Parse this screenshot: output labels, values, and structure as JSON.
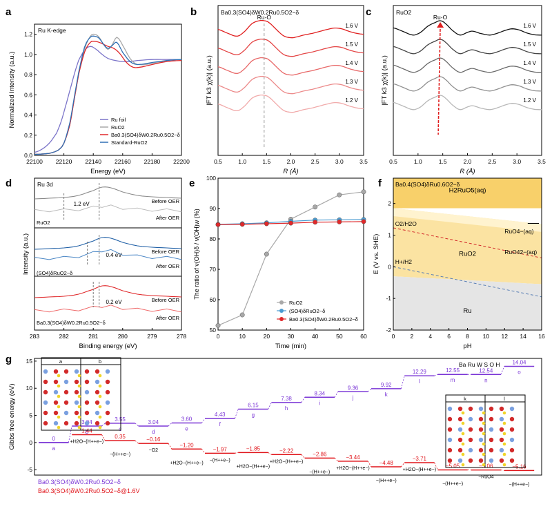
{
  "chart_data": [
    {
      "panel": "a",
      "type": "line",
      "title": "Ru K-edge",
      "xlabel": "Energy (eV)",
      "ylabel": "Normalized Intensity (a.u.)",
      "xlim": [
        22100,
        22200
      ],
      "ylim": [
        0,
        1.3
      ],
      "xticks": [
        22100,
        22120,
        22140,
        22160,
        22180,
        22200
      ],
      "yticks": [
        0.0,
        0.2,
        0.4,
        0.6,
        0.8,
        1.0,
        1.2
      ],
      "legend_position": "bottom-right",
      "series": [
        {
          "name": "Ru foil",
          "color": "#7b74c9",
          "x": [
            22100,
            22105,
            22110,
            22115,
            22118,
            22121,
            22124,
            22127,
            22130,
            22134,
            22138,
            22142,
            22146,
            22150,
            22155,
            22160,
            22165,
            22170,
            22180,
            22190,
            22200
          ],
          "y": [
            0.03,
            0.06,
            0.12,
            0.22,
            0.33,
            0.48,
            0.64,
            0.8,
            0.94,
            1.04,
            1.08,
            1.05,
            1.0,
            0.96,
            0.94,
            0.93,
            0.93,
            0.94,
            0.95,
            0.95,
            0.95
          ]
        },
        {
          "name": "RuO2",
          "color": "#a8a8a8",
          "x": [
            22100,
            22110,
            22116,
            22120,
            22124,
            22127,
            22130,
            22134,
            22138,
            22141,
            22144,
            22147,
            22150,
            22153,
            22156,
            22160,
            22165,
            22170,
            22180,
            22190,
            22200
          ],
          "y": [
            0.01,
            0.02,
            0.05,
            0.12,
            0.3,
            0.55,
            0.8,
            1.05,
            1.18,
            1.2,
            1.17,
            1.1,
            1.05,
            1.1,
            1.17,
            1.09,
            0.96,
            0.9,
            0.91,
            0.94,
            0.95
          ]
        },
        {
          "name": "Ba0.3(SO4)δW0.2Ru0.5O2−δ",
          "color": "#e0282a",
          "x": [
            22100,
            22110,
            22116,
            22120,
            22124,
            22127,
            22130,
            22134,
            22138,
            22141,
            22144,
            22147,
            22150,
            22154,
            22158,
            22162,
            22166,
            22170,
            22180,
            22190,
            22200
          ],
          "y": [
            0.01,
            0.02,
            0.05,
            0.12,
            0.3,
            0.55,
            0.8,
            1.02,
            1.12,
            1.13,
            1.12,
            1.1,
            1.08,
            1.06,
            1.01,
            0.93,
            0.88,
            0.87,
            0.9,
            0.93,
            0.94
          ]
        },
        {
          "name": "Standard-RuO2",
          "color": "#2f6fb4",
          "x": [
            22100,
            22110,
            22116,
            22120,
            22124,
            22127,
            22130,
            22134,
            22138,
            22141,
            22144,
            22147,
            22150,
            22153,
            22156,
            22160,
            22165,
            22170,
            22180,
            22190,
            22200
          ],
          "y": [
            0.01,
            0.02,
            0.05,
            0.12,
            0.32,
            0.57,
            0.82,
            1.07,
            1.17,
            1.18,
            1.16,
            1.1,
            1.06,
            1.09,
            1.12,
            1.02,
            0.93,
            0.9,
            0.92,
            0.94,
            0.95
          ]
        }
      ]
    },
    {
      "panel": "b",
      "type": "line",
      "title": "Ba0.3(SO4)δW0.2Ru0.5O2−δ",
      "xlabel": "R (Å)",
      "ylabel": "|FT k3 χ(k)| (a.u.)",
      "xlim": [
        0.5,
        3.5
      ],
      "xticks": [
        0.5,
        1.0,
        1.5,
        2.0,
        2.5,
        3.0,
        3.5
      ],
      "annotation": "Ru-O",
      "marker_x": 1.45,
      "series": [
        {
          "name": "1.6 V",
          "color": "#e02020"
        },
        {
          "name": "1.5 V",
          "color": "#e44646"
        },
        {
          "name": "1.4 V",
          "color": "#e86868"
        },
        {
          "name": "1.3 V",
          "color": "#ec8a8a"
        },
        {
          "name": "1.2 V",
          "color": "#f1aaaa"
        }
      ]
    },
    {
      "panel": "c",
      "type": "line",
      "title": "RuO2",
      "xlabel": "R (Å)",
      "ylabel": "|FT k3 χ(k)| (a.u.)",
      "xlim": [
        0.5,
        3.5
      ],
      "xticks": [
        0.5,
        1.0,
        1.5,
        2.0,
        2.5,
        3.0,
        3.5
      ],
      "annotation": "Ru-O",
      "marker_x": 1.45,
      "series": [
        {
          "name": "1.6 V",
          "color": "#111111"
        },
        {
          "name": "1.5 V",
          "color": "#444444"
        },
        {
          "name": "1.4 V",
          "color": "#6a6a6a"
        },
        {
          "name": "1.3 V",
          "color": "#909090"
        },
        {
          "name": "1.2 V",
          "color": "#b8b8b8"
        }
      ]
    },
    {
      "panel": "d",
      "type": "line",
      "xlabel": "Binding energy (eV)",
      "ylabel": "Intensity (a.u.)",
      "xlim": [
        283,
        278
      ],
      "xticks": [
        283,
        282,
        281,
        280,
        279,
        278
      ],
      "title": "Ru 3d",
      "groups": [
        {
          "name": "RuO2",
          "color": "#8a8a8a",
          "shift": "1.2 eV",
          "before": "Before OER",
          "after": "After OER"
        },
        {
          "name": "(SO4)δRuO2−δ",
          "color": "#1f5fa6",
          "shift": "0.4 eV",
          "before": "Before OER",
          "after": "After OER"
        },
        {
          "name": "Ba0.3(SO4)δW0.2Ru0.5O2−δ",
          "color": "#e0282a",
          "shift": "0.2 eV",
          "before": "Before OER",
          "after": "After OER"
        }
      ]
    },
    {
      "panel": "e",
      "type": "line",
      "xlabel": "Time (min)",
      "ylabel": "The ratio of ν(OH)δ / ν(OH)w (%)",
      "xlim": [
        0,
        60
      ],
      "ylim": [
        50,
        100
      ],
      "xticks": [
        0,
        10,
        20,
        30,
        40,
        50,
        60
      ],
      "yticks": [
        50,
        60,
        70,
        80,
        90,
        100
      ],
      "legend_position": "bottom-right",
      "x": [
        0,
        10,
        20,
        30,
        40,
        50,
        60
      ],
      "series": [
        {
          "name": "RuO2",
          "color": "#a8a8a8",
          "values": [
            51.5,
            55,
            75,
            86.5,
            90.5,
            94.5,
            95.5
          ]
        },
        {
          "name": "(SO4)δRuO2−δ",
          "color": "#4a9bd1",
          "values": [
            84.8,
            85,
            85.3,
            85.8,
            86.2,
            86.3,
            86.4
          ]
        },
        {
          "name": "Ba0.3(SO4)δW0.2Ru0.5O2−δ",
          "color": "#e0282a",
          "values": [
            84.7,
            84.8,
            85,
            85.2,
            85.5,
            85.6,
            85.7
          ]
        }
      ]
    },
    {
      "panel": "f",
      "type": "area",
      "title": "Ba0.4(SO4)δRu0.6O2−δ",
      "xlabel": "pH",
      "ylabel": "E (V vs. SHE)",
      "xlim": [
        0,
        16
      ],
      "ylim": [
        -2,
        2.8
      ],
      "xticks": [
        0,
        2,
        4,
        6,
        8,
        10,
        12,
        14,
        16
      ],
      "yticks": [
        -2,
        -1,
        0,
        1,
        2
      ],
      "regions": [
        "H2RuO5(aq)",
        "RuO2",
        "Ru",
        "RuO4−(aq)",
        "RuO42−(aq)"
      ],
      "lines": [
        "O2/H2O",
        "H+/H2"
      ]
    },
    {
      "panel": "g",
      "type": "line",
      "ylabel": "Gibbs free energy (eV)",
      "ylim": [
        -6,
        15.5
      ],
      "yticks": [
        -5,
        0,
        5,
        10,
        15
      ],
      "legend_names": [
        "Ba0.3(SO4)δW0.2Ru0.5O2−δ",
        "Ba0.3(SO4)δW0.2Ru0.5O2−δ@1.6V"
      ],
      "legend_title": "Ba  Ru  W  S  O  H",
      "series": [
        {
          "name": "Ba0.3(SO4)δW0.2Ru0.5O2−δ",
          "color": "#7a35d6",
          "values": [
            0,
            3.04,
            3.55,
            3.04,
            3.6,
            4.43,
            6.15,
            7.38,
            8.34,
            9.36,
            9.92,
            12.29,
            12.55,
            12.54,
            14.04
          ],
          "labels": [
            "0",
            "3.04",
            "3.55",
            "3.04",
            "3.60",
            "4.43",
            "6.15",
            "7.38",
            "8.34",
            "9.36",
            "9.92",
            "12.29",
            "12.55",
            "12.54",
            "14.04"
          ],
          "steps": [
            "a",
            "b",
            "c",
            "d",
            "e",
            "f",
            "g",
            "h",
            "i",
            "j",
            "k",
            "l",
            "m",
            "n",
            "o"
          ]
        },
        {
          "name": "Ba0.3(SO4)δW0.2Ru0.5O2−δ@1.6V",
          "color": "#e0141a",
          "values": [
            1.44,
            0.35,
            -0.16,
            -1.2,
            -1.97,
            -1.85,
            -2.22,
            -2.86,
            -3.44,
            -4.48,
            -3.71,
            -5.05,
            -5.06,
            -5.16
          ],
          "labels": [
            "1.44",
            "0.35",
            "−0.16",
            "−1.20",
            "−1.97",
            "−1.85",
            "−2.22",
            "−2.86",
            "−3.44",
            "−4.48",
            "−3.71",
            "−5.05",
            "−5.06",
            "−5.16"
          ]
        }
      ],
      "reactions": [
        "+H2O−(H++e−)",
        "−(H++e−)",
        "−O2",
        "+H2O−(H++e−)",
        "−(H++e−)",
        "+H2O−(H++e−)",
        "+H2O−(H++e−)",
        "−(H++e−)",
        "+H2O−(H++e−)",
        "−(H++e−)",
        "+H2O−(H++e−)",
        "−(H++e−)",
        "−RuO4",
        "−(H++e−)"
      ],
      "inset_labels": [
        "a",
        "b",
        "k",
        "l"
      ]
    }
  ],
  "panel_letters": [
    "a",
    "b",
    "c",
    "d",
    "e",
    "f",
    "g"
  ]
}
